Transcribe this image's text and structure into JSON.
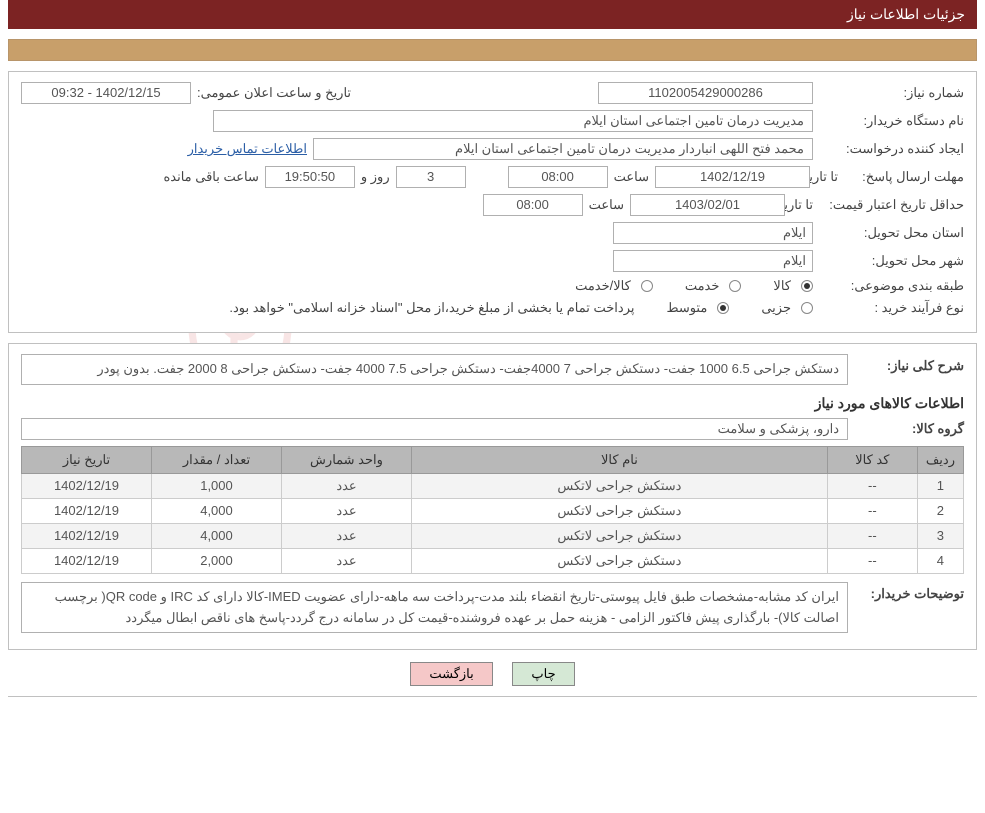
{
  "header": {
    "title": "جزئیات اطلاعات نیاز"
  },
  "watermark": "AriaTender.net",
  "fields": {
    "need_number_label": "شماره نیاز:",
    "need_number": "1102005429000286",
    "announce_label": "تاریخ و ساعت اعلان عمومی:",
    "announce_value": "1402/12/15 - 09:32",
    "buyer_label": "نام دستگاه خریدار:",
    "buyer_value": "مدیریت درمان تامین اجتماعی استان ایلام",
    "requester_label": "ایجاد کننده درخواست:",
    "requester_value": "محمد فتح اللهی انباردار مدیریت درمان تامین اجتماعی استان ایلام",
    "contact_link": "اطلاعات تماس خریدار",
    "deadline_label": "مهلت ارسال پاسخ:",
    "until_date_label": "تا تاریخ:",
    "deadline_date": "1402/12/19",
    "hour_label": "ساعت",
    "deadline_hour": "08:00",
    "day_unit": "روز و",
    "days_left": "3",
    "time_left": "19:50:50",
    "time_left_suffix": "ساعت باقی مانده",
    "min_validity_label": "حداقل تاریخ اعتبار قیمت:",
    "min_validity_date": "1403/02/01",
    "min_validity_hour": "08:00",
    "province_label": "استان محل تحویل:",
    "province_value": "ایلام",
    "city_label": "شهر محل تحویل:",
    "city_value": "ایلام",
    "category_label": "طبقه بندی موضوعی:",
    "cat_goods": "کالا",
    "cat_service": "خدمت",
    "cat_both": "کالا/خدمت",
    "purchase_type_label": "نوع فرآیند خرید :",
    "pt_small": "جزیی",
    "pt_medium": "متوسط",
    "pt_note": "پرداخت تمام یا بخشی از مبلغ خرید،از محل \"اسناد خزانه اسلامی\" خواهد بود."
  },
  "detail": {
    "overview_label": "شرح کلی نیاز:",
    "overview_text": "دستکش جراحی 6.5 1000 جفت- دستکش جراحی 7 4000جفت- دستکش جراحی 7.5 4000 جفت- دستکش جراحی 8 2000 جفت. بدون پودر",
    "items_title": "اطلاعات کالاهای مورد نیاز",
    "group_label": "گروه کالا:",
    "group_value": "دارو، پزشکی و سلامت",
    "buyer_note_label": "توضیحات خریدار:",
    "buyer_note_text": "ایران کد مشابه-مشخصات طبق فایل پیوستی-تاریخ انقضاء بلند مدت-پرداخت سه ماهه-دارای عضویت IMED-کالا دارای کد IRC و QR code( برچسب اصالت کالا)- بارگذاری پیش فاکتور الزامی - هزینه حمل بر عهده فروشنده-قیمت کل در سامانه درج گردد-پاسخ های ناقص ابطال میگردد"
  },
  "table": {
    "cols": {
      "row": "ردیف",
      "code": "کد کالا",
      "name": "نام کالا",
      "unit": "واحد شمارش",
      "qty": "تعداد / مقدار",
      "date": "تاریخ نیاز"
    },
    "rows": [
      {
        "n": "1",
        "code": "--",
        "name": "دستکش جراحی لاتکس",
        "unit": "عدد",
        "qty": "1,000",
        "date": "1402/12/19"
      },
      {
        "n": "2",
        "code": "--",
        "name": "دستکش جراحی لاتکس",
        "unit": "عدد",
        "qty": "4,000",
        "date": "1402/12/19"
      },
      {
        "n": "3",
        "code": "--",
        "name": "دستکش جراحی لاتکس",
        "unit": "عدد",
        "qty": "4,000",
        "date": "1402/12/19"
      },
      {
        "n": "4",
        "code": "--",
        "name": "دستکش جراحی لاتکس",
        "unit": "عدد",
        "qty": "2,000",
        "date": "1402/12/19"
      }
    ]
  },
  "buttons": {
    "print": "چاپ",
    "back": "بازگشت"
  },
  "colors": {
    "header_bg": "#7c2323",
    "tan_bar": "#c89f6a",
    "th_bg": "#b8b8b8",
    "link": "#2b5ea6",
    "btn_print": "#d5e8d5",
    "btn_back": "#f5c8c8"
  },
  "col_widths": [
    "40px",
    "90px",
    "",
    "130px",
    "130px",
    "130px"
  ]
}
